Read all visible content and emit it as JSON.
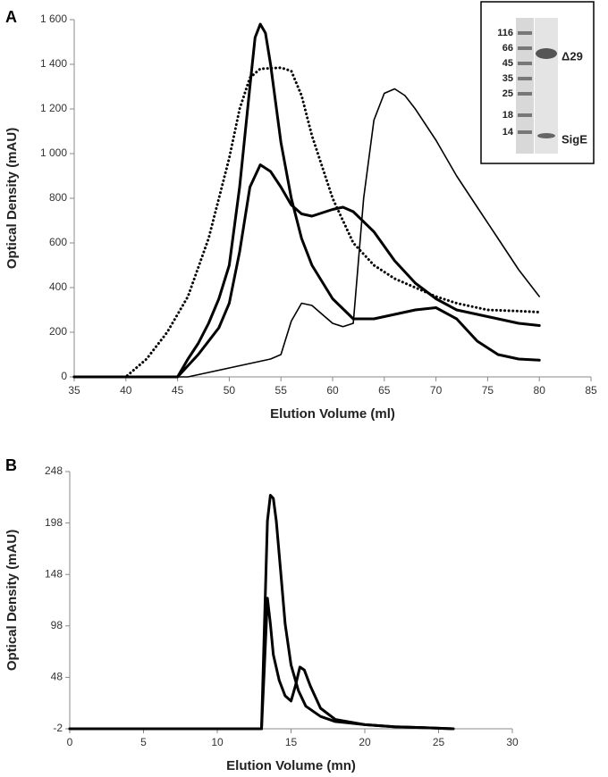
{
  "chart_data": [
    {
      "type": "line",
      "panel": "A",
      "ylabel": "Optical Density (mAU)",
      "xlabel": "Elution Volume (ml)",
      "xlim": [
        35,
        85
      ],
      "xticks": [
        35,
        40,
        45,
        50,
        55,
        60,
        65,
        70,
        75,
        80,
        85
      ],
      "ylim": [
        0,
        1600
      ],
      "yticks": [
        0,
        200,
        400,
        600,
        800,
        {
          "value": 1000,
          "label": "1 000"
        },
        {
          "value": 1200,
          "label": "1 200"
        },
        {
          "value": 1400,
          "label": "1 400"
        },
        {
          "value": 1600,
          "label": "1 600"
        }
      ],
      "series": [
        {
          "color": "#000000",
          "style": "dotted",
          "x": [
            35,
            40,
            42,
            44,
            46,
            48,
            50,
            51,
            52,
            53,
            55,
            56,
            57,
            58,
            60,
            62,
            64,
            66,
            68,
            70,
            72,
            75,
            78,
            80
          ],
          "values": [
            0,
            0,
            80,
            200,
            360,
            620,
            980,
            1200,
            1340,
            1380,
            1385,
            1370,
            1260,
            1080,
            800,
            600,
            500,
            440,
            400,
            360,
            330,
            300,
            295,
            290
          ]
        },
        {
          "color": "#000000",
          "style": "thick",
          "x": [
            35,
            45,
            46,
            47,
            48,
            49,
            50,
            51,
            52,
            52.5,
            53,
            53.5,
            54,
            55,
            56,
            57,
            58,
            60,
            62,
            64,
            66,
            68,
            70,
            72,
            74,
            76,
            78,
            80
          ],
          "values": [
            0,
            0,
            80,
            150,
            240,
            350,
            500,
            850,
            1300,
            1520,
            1580,
            1540,
            1400,
            1050,
            800,
            620,
            500,
            350,
            260,
            260,
            280,
            300,
            310,
            260,
            160,
            100,
            80,
            75
          ]
        },
        {
          "color": "#000000",
          "style": "thick",
          "x": [
            35,
            45,
            47,
            49,
            50,
            51,
            52,
            53,
            54,
            55,
            56,
            57,
            58,
            60,
            61,
            62,
            64,
            66,
            68,
            70,
            72,
            75,
            78,
            80
          ],
          "values": [
            0,
            0,
            100,
            220,
            330,
            560,
            850,
            950,
            920,
            850,
            770,
            730,
            720,
            750,
            760,
            740,
            650,
            520,
            420,
            350,
            300,
            270,
            240,
            230
          ]
        },
        {
          "color": "#000000",
          "style": "thin",
          "x": [
            35,
            46,
            48,
            50,
            52,
            54,
            55,
            56,
            57,
            58,
            59,
            60,
            61,
            62,
            63,
            64,
            65,
            66,
            67,
            68,
            70,
            72,
            74,
            76,
            78,
            80
          ],
          "values": [
            0,
            0,
            20,
            40,
            60,
            80,
            100,
            250,
            330,
            320,
            280,
            240,
            225,
            240,
            800,
            1150,
            1270,
            1290,
            1260,
            1200,
            1060,
            900,
            760,
            620,
            480,
            360
          ]
        }
      ],
      "inset": {
        "markers": [
          116,
          66,
          45,
          35,
          25,
          18,
          14
        ],
        "bands": [
          "Δ29",
          "SigE"
        ]
      }
    },
    {
      "type": "line",
      "panel": "B",
      "ylabel": "Optical Density (mAU)",
      "xlabel": "Elution Volume (mn)",
      "xlim": [
        0,
        30
      ],
      "xticks": [
        0,
        5,
        10,
        15,
        20,
        25,
        30
      ],
      "ylim": [
        -2,
        248
      ],
      "yticks": [
        -2,
        48,
        98,
        148,
        198,
        248
      ],
      "series": [
        {
          "color": "#000000",
          "style": "thick",
          "x": [
            0,
            13,
            13.2,
            13.4,
            13.6,
            13.8,
            14,
            14.3,
            14.6,
            15,
            15.5,
            16,
            17,
            18,
            20,
            22,
            24,
            26
          ],
          "values": [
            -2,
            -2,
            100,
            200,
            225,
            222,
            200,
            150,
            100,
            60,
            35,
            20,
            10,
            5,
            2,
            0,
            -1,
            -2
          ]
        },
        {
          "color": "#000000",
          "style": "thick",
          "x": [
            0,
            13,
            13.2,
            13.4,
            13.6,
            13.8,
            14.2,
            14.6,
            15,
            15.3,
            15.6,
            15.9,
            16.3,
            17,
            18,
            20,
            22,
            24,
            26
          ],
          "values": [
            -2,
            -2,
            60,
            125,
            100,
            70,
            45,
            30,
            25,
            40,
            58,
            55,
            40,
            18,
            7,
            2,
            0,
            -1,
            -2
          ]
        }
      ]
    }
  ]
}
